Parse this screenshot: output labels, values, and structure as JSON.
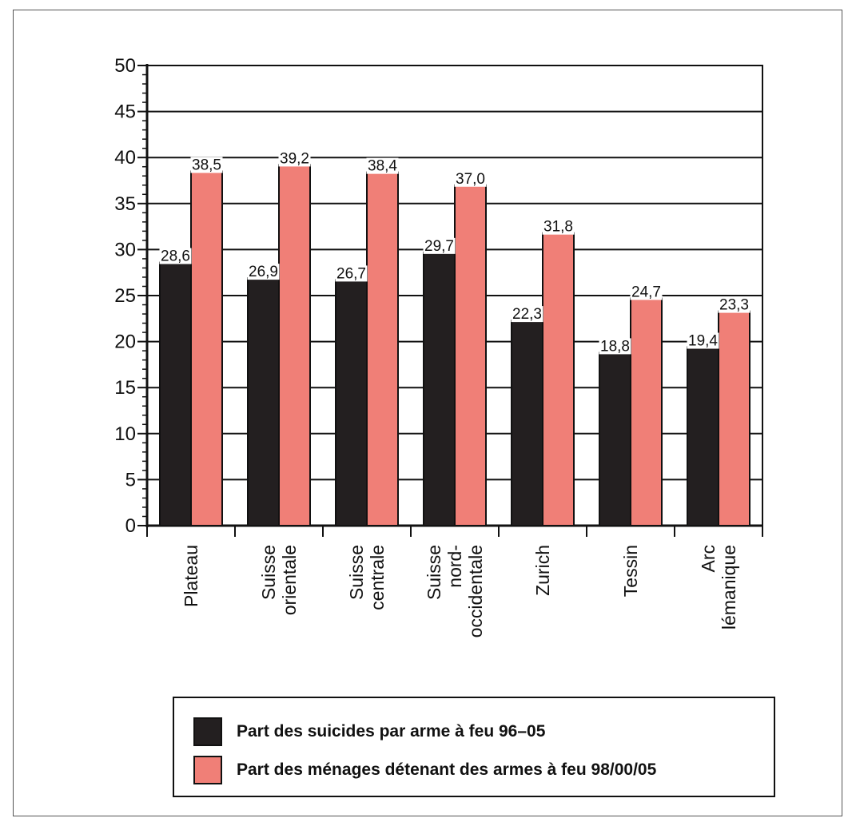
{
  "chart_data": {
    "type": "bar",
    "categories": [
      [
        "Plateau"
      ],
      [
        "Suisse",
        "orientale"
      ],
      [
        "Suisse",
        "centrale"
      ],
      [
        "Suisse",
        "nord-",
        "occidentale"
      ],
      [
        "Zurich"
      ],
      [
        "Tessin"
      ],
      [
        "Arc",
        "lémanique"
      ]
    ],
    "series": [
      {
        "name": "Part des suicides par arme à feu 96–05",
        "color": "#231f20",
        "values": [
          28.6,
          26.9,
          26.7,
          29.7,
          22.3,
          18.8,
          19.4
        ],
        "labels": [
          "28,6",
          "26,9",
          "26,7",
          "29,7",
          "22,3",
          "18,8",
          "19,4"
        ]
      },
      {
        "name": "Part des ménages détenant des armes à feu 98/00/05",
        "color": "#f07f77",
        "values": [
          38.5,
          39.2,
          38.4,
          37.0,
          31.8,
          24.7,
          23.3
        ],
        "labels": [
          "38,5",
          "39,2",
          "38,4",
          "37,0",
          "31,8",
          "24,7",
          "23,3"
        ]
      }
    ],
    "ylim": [
      0,
      50
    ],
    "yticks": [
      "0",
      "5",
      "10",
      "15",
      "20",
      "25",
      "30",
      "35",
      "40",
      "45",
      "50"
    ],
    "grid": true,
    "legend_position": "bottom"
  }
}
